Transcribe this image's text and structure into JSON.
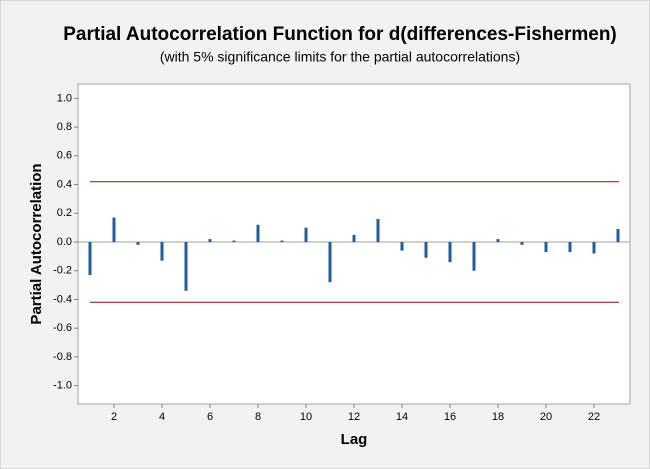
{
  "chart_data": {
    "type": "pacf",
    "title": "Partial Autocorrelation Function for d(differences-Fishermen)",
    "subtitle": "(with 5% significance limits for the partial autocorrelations)",
    "x_label": "Lag",
    "y_label": "Partial Autocorrelation",
    "x": [
      1,
      2,
      3,
      4,
      5,
      6,
      7,
      8,
      9,
      10,
      11,
      12,
      13,
      14,
      15,
      16,
      17,
      18,
      19,
      20,
      21,
      22,
      23
    ],
    "values": [
      -0.23,
      0.17,
      -0.02,
      -0.13,
      -0.34,
      0.02,
      0.01,
      0.12,
      0.01,
      0.1,
      -0.28,
      0.05,
      0.16,
      -0.06,
      -0.11,
      -0.14,
      -0.2,
      0.02,
      -0.02,
      -0.07,
      -0.07,
      -0.08,
      0.09
    ],
    "color": "#1f5fa0",
    "significance_limits": [
      0.42,
      -0.42
    ],
    "limit_color": "#9b2a2a",
    "xlim": [
      0.5,
      23.5
    ],
    "xticks": [
      2,
      4,
      6,
      8,
      10,
      12,
      14,
      16,
      18,
      20,
      22
    ],
    "ylim": [
      -1.1,
      1.1
    ],
    "yticks": [
      {
        "value": 1.0,
        "label": "1.0"
      },
      {
        "value": 0.8,
        "label": "0.8"
      },
      {
        "value": 0.6,
        "label": "0.6"
      },
      {
        "value": 0.4,
        "label": "0.4"
      },
      {
        "value": 0.2,
        "label": "0.2"
      },
      {
        "value": 0.0,
        "label": "0.0"
      },
      {
        "value": -0.2,
        "label": "-0.2"
      },
      {
        "value": -0.4,
        "label": "-0.4"
      },
      {
        "value": -0.6,
        "label": "-0.6"
      },
      {
        "value": -0.8,
        "label": "-0.8"
      },
      {
        "value": -1.0,
        "label": "-1.0"
      }
    ]
  }
}
